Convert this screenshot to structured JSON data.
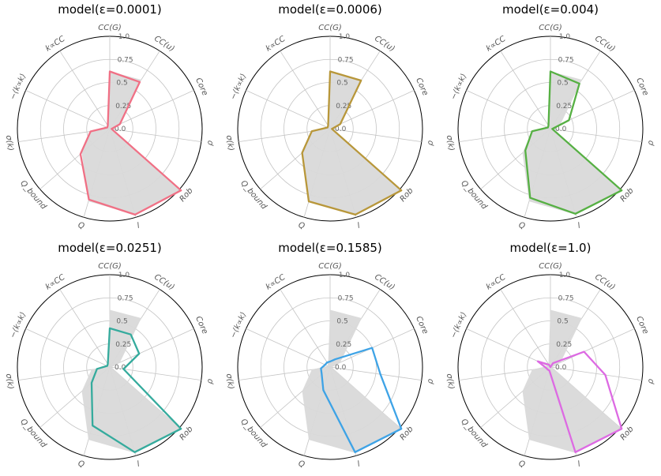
{
  "chart_data": {
    "type": "radar",
    "axes": [
      "CC(G)",
      "CC(u)",
      "Core",
      "ρ",
      "Rob",
      "l",
      "Q",
      "Q_bound",
      "σ(k)",
      "−⟨k∝k⟩",
      "k∝CC"
    ],
    "radial_ticks": [
      "0.0",
      "0.25",
      "0.5",
      "0.75",
      "1.0"
    ],
    "rlim": [
      0,
      1
    ],
    "reference_series": {
      "color": "#d9d9d9",
      "values": [
        0.62,
        0.63,
        0.12,
        0.02,
        1.02,
        0.97,
        0.82,
        0.4,
        0.2,
        0.03,
        0.04
      ]
    },
    "panels": [
      {
        "title": "model(ε=0.0001)",
        "color": "#f07085",
        "values": [
          0.62,
          0.6,
          0.12,
          0.02,
          1.02,
          0.97,
          0.8,
          0.42,
          0.21,
          0.03,
          0.04
        ]
      },
      {
        "title": "model(ε=0.0006)",
        "color": "#b8973a",
        "values": [
          0.62,
          0.62,
          0.12,
          0.02,
          1.02,
          0.97,
          0.82,
          0.4,
          0.2,
          0.03,
          0.04
        ]
      },
      {
        "title": "model(ε=0.004)",
        "color": "#56b043",
        "values": [
          0.62,
          0.58,
          0.22,
          0.02,
          1.02,
          0.96,
          0.78,
          0.36,
          0.2,
          0.03,
          0.04
        ]
      },
      {
        "title": "model(ε=0.0251)",
        "color": "#35ab9d",
        "values": [
          0.42,
          0.42,
          0.35,
          0.15,
          1.02,
          0.96,
          0.66,
          0.26,
          0.14,
          0.03,
          0.04
        ]
      },
      {
        "title": "model(ε=0.1585)",
        "color": "#3ea3e6",
        "values": [
          0.06,
          0.1,
          0.5,
          0.55,
          1.02,
          0.96,
          0.26,
          0.12,
          0.1,
          0.06,
          0.06
        ]
      },
      {
        "title": "model(ε=1.0)",
        "color": "#dd6ae3",
        "values": [
          0.0,
          0.05,
          0.4,
          0.6,
          1.02,
          0.96,
          0.04,
          0.04,
          0.05,
          0.15,
          0.03
        ]
      }
    ]
  }
}
